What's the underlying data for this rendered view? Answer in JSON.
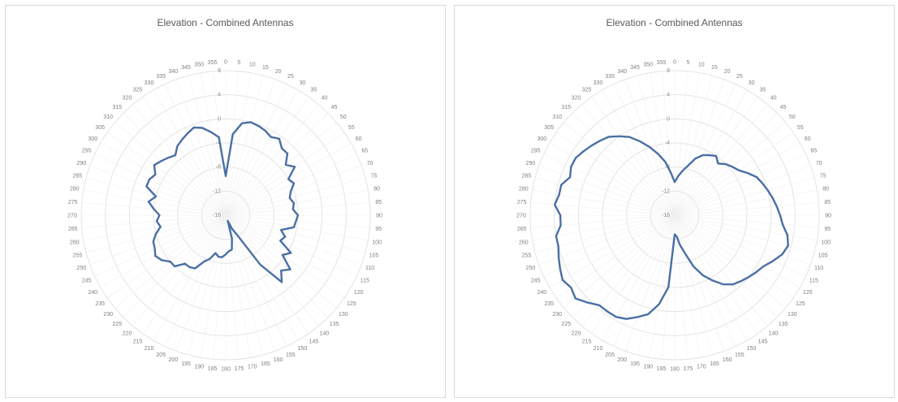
{
  "chart_data": [
    {
      "type": "radar",
      "title": "Elevation - Combined Antennas",
      "theta_unit": "degrees",
      "theta_ticks": [
        0,
        5,
        10,
        15,
        20,
        25,
        30,
        35,
        40,
        45,
        50,
        55,
        60,
        65,
        70,
        75,
        80,
        85,
        90,
        95,
        100,
        105,
        110,
        115,
        120,
        125,
        130,
        135,
        140,
        145,
        150,
        155,
        160,
        165,
        170,
        175,
        180,
        185,
        190,
        195,
        200,
        205,
        210,
        215,
        220,
        225,
        230,
        235,
        240,
        245,
        250,
        255,
        260,
        265,
        270,
        275,
        280,
        285,
        290,
        295,
        300,
        305,
        310,
        315,
        320,
        325,
        330,
        335,
        340,
        345,
        350,
        355
      ],
      "r_ticks": [
        -16,
        -12,
        -8,
        -4,
        0,
        4,
        8
      ],
      "rlim": [
        -16,
        8
      ],
      "grid": true,
      "series": [
        {
          "angles": [
            0,
            5,
            10,
            15,
            20,
            25,
            30,
            35,
            40,
            45,
            50,
            55,
            60,
            65,
            70,
            75,
            80,
            85,
            90,
            95,
            100,
            105,
            110,
            115,
            120,
            125,
            130,
            135,
            140,
            145,
            150,
            155,
            160,
            165,
            170,
            175,
            180,
            185,
            190,
            195,
            200,
            205,
            210,
            215,
            220,
            225,
            230,
            235,
            240,
            245,
            250,
            255,
            260,
            265,
            270,
            275,
            280,
            285,
            290,
            295,
            300,
            305,
            310,
            315,
            320,
            325,
            330,
            335,
            340,
            345,
            350,
            355
          ],
          "values": [
            -9.5,
            -2.5,
            -0.5,
            0,
            -0.2,
            -0.5,
            -1,
            -0.5,
            -1.5,
            -1.5,
            -3,
            -2,
            -4,
            -3.5,
            -4.5,
            -5,
            -4.5,
            -4.8,
            -4,
            -4.3,
            -4.5,
            -6.5,
            -5.5,
            -6,
            -3.5,
            -4.5,
            -2,
            -3,
            -1.5,
            -6,
            -12.3,
            -13.5,
            -15,
            -12,
            -10.2,
            -10,
            -9.5,
            -9,
            -9,
            -9.5,
            -8.3,
            -7.5,
            -5.8,
            -5.5,
            -5.5,
            -4,
            -4,
            -3,
            -2.5,
            -3,
            -3.2,
            -4,
            -5,
            -4.5,
            -5,
            -4,
            -3,
            -4,
            -2,
            -2,
            -2.5,
            -1.5,
            -2,
            -2.5,
            -3,
            -2,
            -1.5,
            -1,
            -0.5,
            -1,
            -2,
            -3
          ]
        }
      ]
    },
    {
      "type": "radar",
      "title": "Elevation - Combined Antennas",
      "theta_unit": "degrees",
      "theta_ticks": [
        0,
        5,
        10,
        15,
        20,
        25,
        30,
        35,
        40,
        45,
        50,
        55,
        60,
        65,
        70,
        75,
        80,
        85,
        90,
        95,
        100,
        105,
        110,
        115,
        120,
        125,
        130,
        135,
        140,
        145,
        150,
        155,
        160,
        165,
        170,
        175,
        180,
        185,
        190,
        195,
        200,
        205,
        210,
        215,
        220,
        225,
        230,
        235,
        240,
        245,
        250,
        255,
        260,
        265,
        270,
        275,
        280,
        285,
        290,
        295,
        300,
        305,
        310,
        315,
        320,
        325,
        330,
        335,
        340,
        345,
        350,
        355
      ],
      "r_ticks": [
        -16,
        -12,
        -8,
        -4,
        0,
        4,
        8
      ],
      "rlim": [
        -16,
        8
      ],
      "grid": true,
      "series": [
        {
          "angles": [
            0,
            5,
            10,
            15,
            20,
            25,
            30,
            35,
            40,
            45,
            50,
            55,
            60,
            65,
            70,
            75,
            80,
            85,
            90,
            95,
            100,
            105,
            110,
            115,
            120,
            125,
            130,
            135,
            140,
            145,
            150,
            155,
            160,
            165,
            170,
            175,
            180,
            185,
            190,
            195,
            200,
            205,
            210,
            215,
            220,
            225,
            230,
            235,
            240,
            245,
            250,
            255,
            260,
            265,
            270,
            275,
            280,
            285,
            290,
            295,
            300,
            305,
            310,
            315,
            320,
            325,
            330,
            335,
            340,
            345,
            350,
            355
          ],
          "values": [
            -10.5,
            -9.5,
            -8.5,
            -7.5,
            -6,
            -5,
            -4.5,
            -4,
            -4.8,
            -4,
            -3.5,
            -3,
            -2,
            -1,
            -0.5,
            0,
            0.5,
            1,
            1.5,
            2,
            3,
            3.5,
            3,
            2,
            1,
            0.5,
            0,
            -0.5,
            -1,
            -2,
            -3.5,
            -5,
            -7,
            -9.5,
            -11,
            -12.5,
            -12.8,
            -4,
            -1,
            1,
            2,
            3,
            3.5,
            3.5,
            3.5,
            4.5,
            5.5,
            5,
            5.5,
            5,
            4.5,
            4,
            4,
            3,
            3,
            4,
            3.5,
            3.5,
            2.5,
            3,
            3,
            2.5,
            2,
            1.5,
            1,
            0,
            -1,
            -2.5,
            -4,
            -5.5,
            -7,
            -9
          ]
        }
      ]
    }
  ]
}
